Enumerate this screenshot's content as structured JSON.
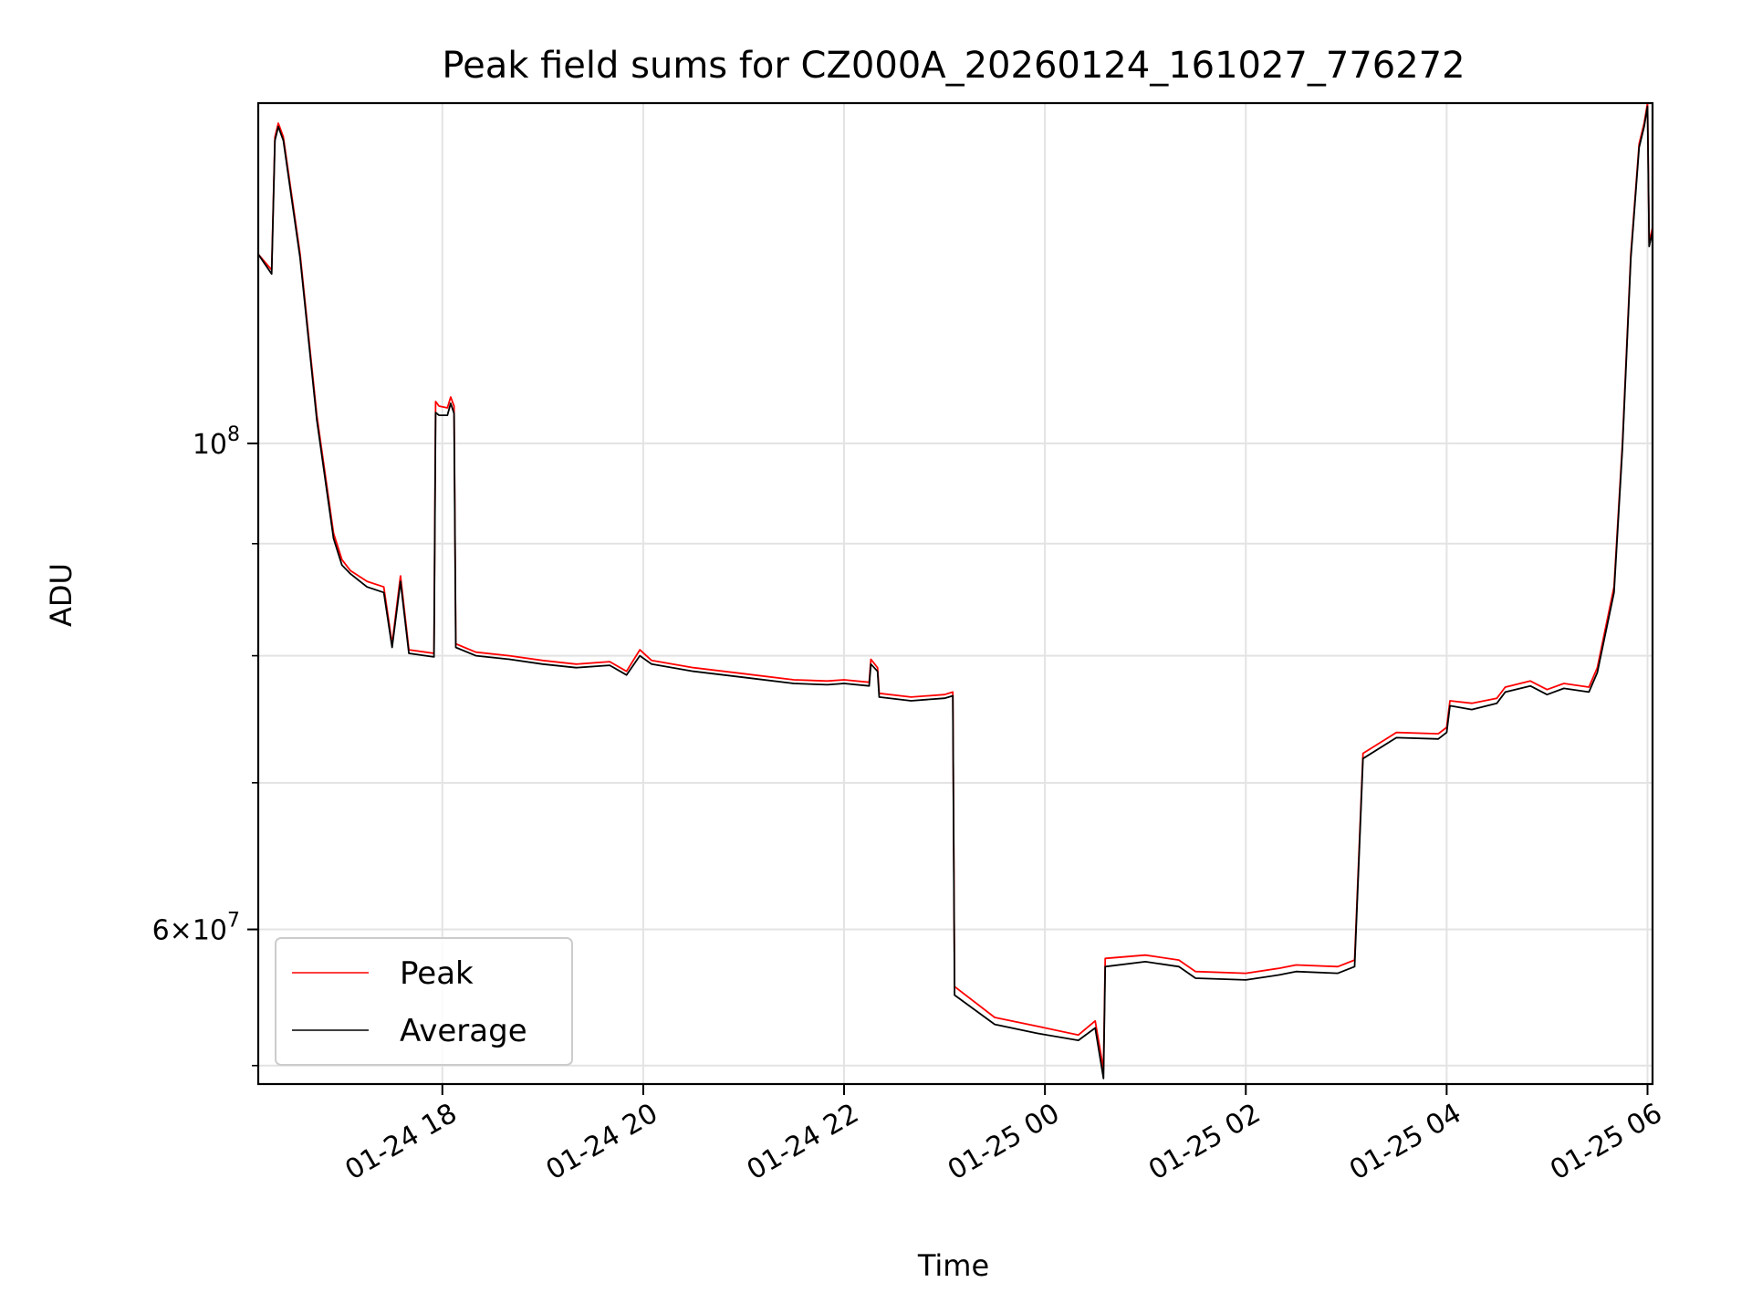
{
  "chart_data": {
    "type": "line",
    "title": "Peak field sums for CZ000A_20260124_161027_776272",
    "xlabel": "Time",
    "ylabel": "ADU",
    "y_scale": "log",
    "ylim": [
      51000000,
      143000000
    ],
    "xlim": [
      "2026-01-24 16:10",
      "2026-01-25 06:03"
    ],
    "x_ticks": [
      {
        "t": "2026-01-24 18:00",
        "label": "01-24 18"
      },
      {
        "t": "2026-01-24 20:00",
        "label": "01-24 20"
      },
      {
        "t": "2026-01-24 22:00",
        "label": "01-24 22"
      },
      {
        "t": "2026-01-25 00:00",
        "label": "01-25 00"
      },
      {
        "t": "2026-01-25 02:00",
        "label": "01-25 02"
      },
      {
        "t": "2026-01-25 04:00",
        "label": "01-25 04"
      },
      {
        "t": "2026-01-25 06:00",
        "label": "01-25 06"
      }
    ],
    "y_ticks_major": [
      {
        "v": 60000000,
        "mantissa": "6",
        "exp": "7"
      },
      {
        "v": 100000000,
        "mantissa": "",
        "exp": "8"
      }
    ],
    "y_ticks_minor": [
      60000000,
      70000000,
      80000000,
      90000000
    ],
    "grid": true,
    "legend_position": "lower-left",
    "series": [
      {
        "name": "Peak",
        "color": "#ff0000",
        "points": [
          [
            "2026-01-24 16:10",
            122000000
          ],
          [
            "2026-01-24 16:18",
            120000000
          ],
          [
            "2026-01-24 16:20",
            138000000
          ],
          [
            "2026-01-24 16:22",
            140000000
          ],
          [
            "2026-01-24 16:25",
            138000000
          ],
          [
            "2026-01-24 16:35",
            122000000
          ],
          [
            "2026-01-24 16:45",
            103000000
          ],
          [
            "2026-01-24 16:55",
            91000000
          ],
          [
            "2026-01-24 17:00",
            88500000
          ],
          [
            "2026-01-24 17:05",
            87500000
          ],
          [
            "2026-01-24 17:15",
            86500000
          ],
          [
            "2026-01-24 17:25",
            86000000
          ],
          [
            "2026-01-24 17:30",
            81000000
          ],
          [
            "2026-01-24 17:35",
            87000000
          ],
          [
            "2026-01-24 17:40",
            80500000
          ],
          [
            "2026-01-24 17:50",
            80300000
          ],
          [
            "2026-01-24 17:55",
            80200000
          ],
          [
            "2026-01-24 17:56",
            104500000
          ],
          [
            "2026-01-24 17:58",
            104000000
          ],
          [
            "2026-01-24 18:03",
            103800000
          ],
          [
            "2026-01-24 18:05",
            105000000
          ],
          [
            "2026-01-24 18:07",
            104000000
          ],
          [
            "2026-01-24 18:08",
            81000000
          ],
          [
            "2026-01-24 18:20",
            80300000
          ],
          [
            "2026-01-24 18:40",
            80000000
          ],
          [
            "2026-01-24 19:00",
            79600000
          ],
          [
            "2026-01-24 19:20",
            79300000
          ],
          [
            "2026-01-24 19:40",
            79500000
          ],
          [
            "2026-01-24 19:50",
            78700000
          ],
          [
            "2026-01-24 19:58",
            80500000
          ],
          [
            "2026-01-24 20:05",
            79600000
          ],
          [
            "2026-01-24 20:30",
            79000000
          ],
          [
            "2026-01-24 21:00",
            78500000
          ],
          [
            "2026-01-24 21:30",
            78000000
          ],
          [
            "2026-01-24 21:50",
            77900000
          ],
          [
            "2026-01-24 22:00",
            78000000
          ],
          [
            "2026-01-24 22:15",
            77800000
          ],
          [
            "2026-01-24 22:16",
            79700000
          ],
          [
            "2026-01-24 22:20",
            79000000
          ],
          [
            "2026-01-24 22:21",
            76900000
          ],
          [
            "2026-01-24 22:40",
            76600000
          ],
          [
            "2026-01-24 23:00",
            76800000
          ],
          [
            "2026-01-24 23:05",
            77000000
          ],
          [
            "2026-01-24 23:06",
            56500000
          ],
          [
            "2026-01-24 23:30",
            54700000
          ],
          [
            "2026-01-24 23:55",
            54200000
          ],
          [
            "2026-01-25 00:20",
            53700000
          ],
          [
            "2026-01-25 00:30",
            54500000
          ],
          [
            "2026-01-25 00:35",
            51800000
          ],
          [
            "2026-01-25 00:36",
            58200000
          ],
          [
            "2026-01-25 01:00",
            58400000
          ],
          [
            "2026-01-25 01:20",
            58100000
          ],
          [
            "2026-01-25 01:30",
            57400000
          ],
          [
            "2026-01-25 02:00",
            57300000
          ],
          [
            "2026-01-25 02:20",
            57600000
          ],
          [
            "2026-01-25 02:30",
            57800000
          ],
          [
            "2026-01-25 02:55",
            57700000
          ],
          [
            "2026-01-25 03:05",
            58100000
          ],
          [
            "2026-01-25 03:10",
            72200000
          ],
          [
            "2026-01-25 03:30",
            73800000
          ],
          [
            "2026-01-25 03:55",
            73700000
          ],
          [
            "2026-01-25 04:00",
            74200000
          ],
          [
            "2026-01-25 04:02",
            76300000
          ],
          [
            "2026-01-25 04:15",
            76100000
          ],
          [
            "2026-01-25 04:30",
            76500000
          ],
          [
            "2026-01-25 04:35",
            77400000
          ],
          [
            "2026-01-25 04:50",
            77900000
          ],
          [
            "2026-01-25 05:00",
            77200000
          ],
          [
            "2026-01-25 05:10",
            77700000
          ],
          [
            "2026-01-25 05:25",
            77400000
          ],
          [
            "2026-01-25 05:30",
            79000000
          ],
          [
            "2026-01-25 05:40",
            86000000
          ],
          [
            "2026-01-25 05:45",
            100000000
          ],
          [
            "2026-01-25 05:50",
            122000000
          ],
          [
            "2026-01-25 05:55",
            137000000
          ],
          [
            "2026-01-25 05:58",
            140000000
          ],
          [
            "2026-01-25 06:00",
            143000000
          ],
          [
            "2026-01-25 06:01",
            123500000
          ],
          [
            "2026-01-25 06:03",
            125500000
          ]
        ]
      },
      {
        "name": "Average",
        "color": "#000000",
        "points": [
          [
            "2026-01-24 16:10",
            122000000
          ],
          [
            "2026-01-24 16:18",
            119500000
          ],
          [
            "2026-01-24 16:20",
            137500000
          ],
          [
            "2026-01-24 16:22",
            139500000
          ],
          [
            "2026-01-24 16:25",
            137500000
          ],
          [
            "2026-01-24 16:35",
            121500000
          ],
          [
            "2026-01-24 16:45",
            102500000
          ],
          [
            "2026-01-24 16:55",
            90500000
          ],
          [
            "2026-01-24 17:00",
            88000000
          ],
          [
            "2026-01-24 17:05",
            87200000
          ],
          [
            "2026-01-24 17:15",
            86000000
          ],
          [
            "2026-01-24 17:25",
            85500000
          ],
          [
            "2026-01-24 17:30",
            80700000
          ],
          [
            "2026-01-24 17:35",
            86500000
          ],
          [
            "2026-01-24 17:40",
            80200000
          ],
          [
            "2026-01-24 17:50",
            80000000
          ],
          [
            "2026-01-24 17:55",
            79900000
          ],
          [
            "2026-01-24 17:56",
            103300000
          ],
          [
            "2026-01-24 17:58",
            103000000
          ],
          [
            "2026-01-24 18:03",
            103000000
          ],
          [
            "2026-01-24 18:05",
            104300000
          ],
          [
            "2026-01-24 18:07",
            103200000
          ],
          [
            "2026-01-24 18:08",
            80700000
          ],
          [
            "2026-01-24 18:20",
            80000000
          ],
          [
            "2026-01-24 18:40",
            79700000
          ],
          [
            "2026-01-24 19:00",
            79300000
          ],
          [
            "2026-01-24 19:20",
            79000000
          ],
          [
            "2026-01-24 19:40",
            79200000
          ],
          [
            "2026-01-24 19:50",
            78400000
          ],
          [
            "2026-01-24 19:58",
            80000000
          ],
          [
            "2026-01-24 20:05",
            79300000
          ],
          [
            "2026-01-24 20:30",
            78700000
          ],
          [
            "2026-01-24 21:00",
            78200000
          ],
          [
            "2026-01-24 21:30",
            77700000
          ],
          [
            "2026-01-24 21:50",
            77600000
          ],
          [
            "2026-01-24 22:00",
            77700000
          ],
          [
            "2026-01-24 22:15",
            77500000
          ],
          [
            "2026-01-24 22:16",
            79300000
          ],
          [
            "2026-01-24 22:20",
            78700000
          ],
          [
            "2026-01-24 22:21",
            76600000
          ],
          [
            "2026-01-24 22:40",
            76300000
          ],
          [
            "2026-01-24 23:00",
            76500000
          ],
          [
            "2026-01-24 23:05",
            76700000
          ],
          [
            "2026-01-24 23:06",
            56000000
          ],
          [
            "2026-01-24 23:30",
            54300000
          ],
          [
            "2026-01-24 23:55",
            53800000
          ],
          [
            "2026-01-25 00:20",
            53400000
          ],
          [
            "2026-01-25 00:30",
            54100000
          ],
          [
            "2026-01-25 00:35",
            51300000
          ],
          [
            "2026-01-25 00:36",
            57700000
          ],
          [
            "2026-01-25 01:00",
            58000000
          ],
          [
            "2026-01-25 01:20",
            57700000
          ],
          [
            "2026-01-25 01:30",
            57000000
          ],
          [
            "2026-01-25 02:00",
            56900000
          ],
          [
            "2026-01-25 02:20",
            57200000
          ],
          [
            "2026-01-25 02:30",
            57400000
          ],
          [
            "2026-01-25 02:55",
            57300000
          ],
          [
            "2026-01-25 03:05",
            57700000
          ],
          [
            "2026-01-25 03:10",
            71800000
          ],
          [
            "2026-01-25 03:30",
            73400000
          ],
          [
            "2026-01-25 03:55",
            73300000
          ],
          [
            "2026-01-25 04:00",
            73800000
          ],
          [
            "2026-01-25 04:02",
            75900000
          ],
          [
            "2026-01-25 04:15",
            75600000
          ],
          [
            "2026-01-25 04:30",
            76100000
          ],
          [
            "2026-01-25 04:35",
            77000000
          ],
          [
            "2026-01-25 04:50",
            77500000
          ],
          [
            "2026-01-25 05:00",
            76800000
          ],
          [
            "2026-01-25 05:10",
            77300000
          ],
          [
            "2026-01-25 05:25",
            77000000
          ],
          [
            "2026-01-25 05:30",
            78600000
          ],
          [
            "2026-01-25 05:40",
            85500000
          ],
          [
            "2026-01-25 05:45",
            99500000
          ],
          [
            "2026-01-25 05:50",
            121500000
          ],
          [
            "2026-01-25 05:55",
            136500000
          ],
          [
            "2026-01-25 05:58",
            139500000
          ],
          [
            "2026-01-25 06:00",
            142500000
          ],
          [
            "2026-01-25 06:01",
            123000000
          ],
          [
            "2026-01-25 06:03",
            125000000
          ]
        ]
      }
    ]
  }
}
